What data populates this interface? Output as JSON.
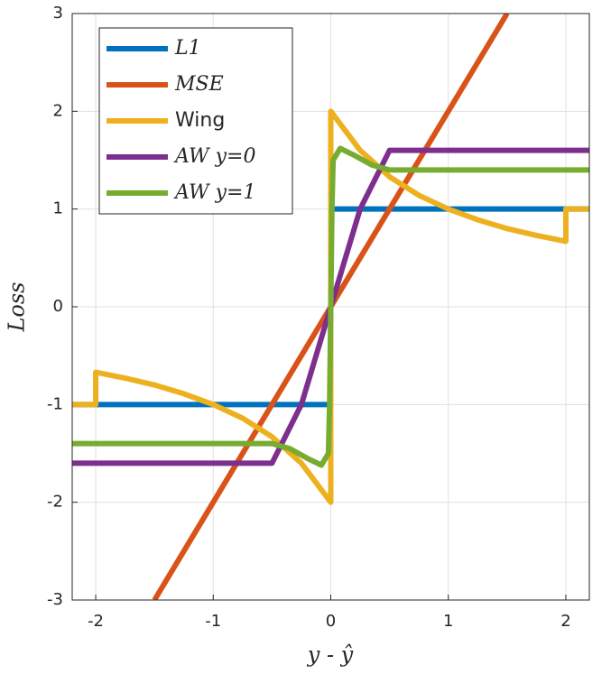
{
  "chart_data": {
    "type": "line",
    "xlabel": "y - ŷ",
    "ylabel": "Loss",
    "xlim": [
      -2.2,
      2.2
    ],
    "ylim": [
      -3,
      3
    ],
    "xticks": [
      -2,
      -1,
      0,
      1,
      2
    ],
    "yticks": [
      -3,
      -2,
      -1,
      0,
      1,
      2,
      3
    ],
    "grid": true,
    "legend": "upper-left",
    "series": [
      {
        "name": "L1",
        "color": "#0072BD",
        "x": [
          -2.2,
          0,
          0,
          2.2
        ],
        "values": [
          -1,
          -1,
          1,
          1
        ]
      },
      {
        "name": "MSE",
        "color": "#D95319",
        "x": [
          -1.5,
          1.5
        ],
        "values": [
          -3,
          3
        ]
      },
      {
        "name": "Wing",
        "color": "#EDB120",
        "x": [
          -2.2,
          -2,
          -2,
          -1.75,
          -1.5,
          -1.25,
          -1,
          -0.75,
          -0.5,
          -0.25,
          0,
          0,
          0.25,
          0.5,
          0.75,
          1,
          1.25,
          1.5,
          1.75,
          2,
          2,
          2.2
        ],
        "values": [
          -1,
          -1,
          -0.67,
          -0.73,
          -0.8,
          -0.89,
          -1,
          -1.14,
          -1.33,
          -1.6,
          -2,
          2,
          1.6,
          1.33,
          1.14,
          1,
          0.89,
          0.8,
          0.73,
          0.67,
          1,
          1
        ]
      },
      {
        "name": "AW y=0",
        "color": "#7E2F8E",
        "x": [
          -2.2,
          -0.5,
          -0.25,
          0,
          0.25,
          0.5,
          2.2
        ],
        "values": [
          -1.6,
          -1.6,
          -1.0,
          0,
          1.0,
          1.6,
          1.6
        ]
      },
      {
        "name": "AW y=1",
        "color": "#77AC30",
        "x": [
          -2.2,
          -0.5,
          -0.35,
          -0.2,
          -0.08,
          -0.02,
          -0.01,
          0,
          0.01,
          0.02,
          0.08,
          0.2,
          0.35,
          0.5,
          2.2
        ],
        "values": [
          -1.4,
          -1.4,
          -1.45,
          -1.55,
          -1.62,
          -1.5,
          -1.0,
          0,
          1.0,
          1.5,
          1.62,
          1.55,
          1.45,
          1.4,
          1.4
        ]
      }
    ]
  }
}
